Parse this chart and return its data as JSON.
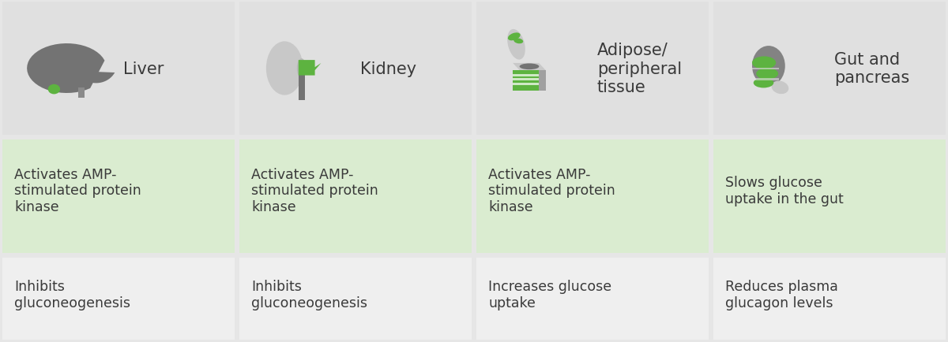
{
  "fig_width": 12.0,
  "fig_height": 4.35,
  "dpi": 100,
  "background_color": "#e6e6e6",
  "header_bg_color": "#e0e0e0",
  "row1_bg_color": "#daecd0",
  "row2_bg_color": "#efefef",
  "border_color": "#ffffff",
  "columns": [
    "Liver",
    "Kidney",
    "Adipose/\nperipheral\ntissue",
    "Gut and\npancreas"
  ],
  "row1_texts": [
    "Activates AMP-\nstimulated protein\nkinase",
    "Activates AMP-\nstimulated protein\nkinase",
    "Activates AMP-\nstimulated protein\nkinase",
    "Slows glucose\nuptake in the gut"
  ],
  "row2_texts": [
    "Inhibits\ngluconeogenesis",
    "Inhibits\ngluconeogenesis",
    "Increases glucose\nuptake",
    "Reduces plasma\nglucagon levels"
  ],
  "text_color": "#3a3a3a",
  "header_text_color": "#3a3a3a",
  "font_size": 12.5,
  "header_font_size": 15,
  "gray_dark": "#737373",
  "gray_light": "#c8c8c8",
  "gray_mid": "#8a8a8a",
  "green_icon": "#5db340",
  "green_light": "#7ec85e"
}
